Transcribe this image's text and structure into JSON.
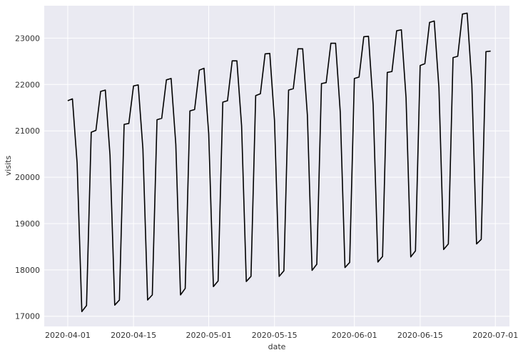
{
  "chart_data": {
    "type": "line",
    "title": "",
    "xlabel": "date",
    "ylabel": "visits",
    "xlim": [
      "2020-03-27",
      "2020-07-04"
    ],
    "ylim": [
      16780,
      23700
    ],
    "grid": true,
    "legend": "none",
    "colors": {
      "background": "#eaeaf2",
      "grid": "#ffffff",
      "line": "#000000"
    },
    "x_ticks": [
      {
        "value": "2020-04-01",
        "label": "2020-04-01"
      },
      {
        "value": "2020-04-15",
        "label": "2020-04-15"
      },
      {
        "value": "2020-05-01",
        "label": "2020-05-01"
      },
      {
        "value": "2020-05-15",
        "label": "2020-05-15"
      },
      {
        "value": "2020-06-01",
        "label": "2020-06-01"
      },
      {
        "value": "2020-06-15",
        "label": "2020-06-15"
      },
      {
        "value": "2020-07-01",
        "label": "2020-07-01"
      }
    ],
    "y_ticks": [
      {
        "value": 17000,
        "label": "17000"
      },
      {
        "value": 18000,
        "label": "18000"
      },
      {
        "value": 19000,
        "label": "19000"
      },
      {
        "value": 20000,
        "label": "20000"
      },
      {
        "value": 21000,
        "label": "21000"
      },
      {
        "value": 22000,
        "label": "22000"
      },
      {
        "value": 23000,
        "label": "23000"
      }
    ],
    "series": [
      {
        "x": [
          "2020-04-01",
          "2020-04-02",
          "2020-04-03",
          "2020-04-04",
          "2020-04-05",
          "2020-04-06",
          "2020-04-07",
          "2020-04-08",
          "2020-04-09",
          "2020-04-10",
          "2020-04-11",
          "2020-04-12",
          "2020-04-13",
          "2020-04-14",
          "2020-04-15",
          "2020-04-16",
          "2020-04-17",
          "2020-04-18",
          "2020-04-19",
          "2020-04-20",
          "2020-04-21",
          "2020-04-22",
          "2020-04-23",
          "2020-04-24",
          "2020-04-25",
          "2020-04-26",
          "2020-04-27",
          "2020-04-28",
          "2020-04-29",
          "2020-04-30",
          "2020-05-01",
          "2020-05-02",
          "2020-05-03",
          "2020-05-04",
          "2020-05-05",
          "2020-05-06",
          "2020-05-07",
          "2020-05-08",
          "2020-05-09",
          "2020-05-10",
          "2020-05-11",
          "2020-05-12",
          "2020-05-13",
          "2020-05-14",
          "2020-05-15",
          "2020-05-16",
          "2020-05-17",
          "2020-05-18",
          "2020-05-19",
          "2020-05-20",
          "2020-05-21",
          "2020-05-22",
          "2020-05-23",
          "2020-05-24",
          "2020-05-25",
          "2020-05-26",
          "2020-05-27",
          "2020-05-28",
          "2020-05-29",
          "2020-05-30",
          "2020-05-31",
          "2020-06-01",
          "2020-06-02",
          "2020-06-03",
          "2020-06-04",
          "2020-06-05",
          "2020-06-06",
          "2020-06-07",
          "2020-06-08",
          "2020-06-09",
          "2020-06-10",
          "2020-06-11",
          "2020-06-12",
          "2020-06-13",
          "2020-06-14",
          "2020-06-15",
          "2020-06-16",
          "2020-06-17",
          "2020-06-18",
          "2020-06-19",
          "2020-06-20",
          "2020-06-21",
          "2020-06-22",
          "2020-06-23",
          "2020-06-24",
          "2020-06-25",
          "2020-06-26",
          "2020-06-27",
          "2020-06-28",
          "2020-06-29",
          "2020-06-30"
        ],
        "values": [
          21650,
          21690,
          20300,
          17100,
          17230,
          20970,
          21010,
          21850,
          21880,
          20470,
          17240,
          17350,
          21140,
          21160,
          21970,
          21990,
          20610,
          17350,
          17460,
          21240,
          21270,
          22100,
          22130,
          20710,
          17460,
          17600,
          21430,
          21460,
          22310,
          22350,
          20940,
          17640,
          17760,
          21620,
          21650,
          22510,
          22510,
          21110,
          17750,
          17860,
          21760,
          21800,
          22660,
          22670,
          21230,
          17860,
          17980,
          21880,
          21910,
          22770,
          22770,
          21340,
          17990,
          18120,
          22020,
          22040,
          22890,
          22890,
          21400,
          18050,
          18160,
          22130,
          22160,
          23030,
          23040,
          21560,
          18170,
          18290,
          22260,
          22280,
          23160,
          23180,
          21710,
          18280,
          18410,
          22410,
          22450,
          23340,
          23370,
          21920,
          18440,
          18560,
          22580,
          22610,
          23520,
          23540,
          22020,
          18560,
          18660,
          22710,
          22720
        ]
      }
    ]
  }
}
